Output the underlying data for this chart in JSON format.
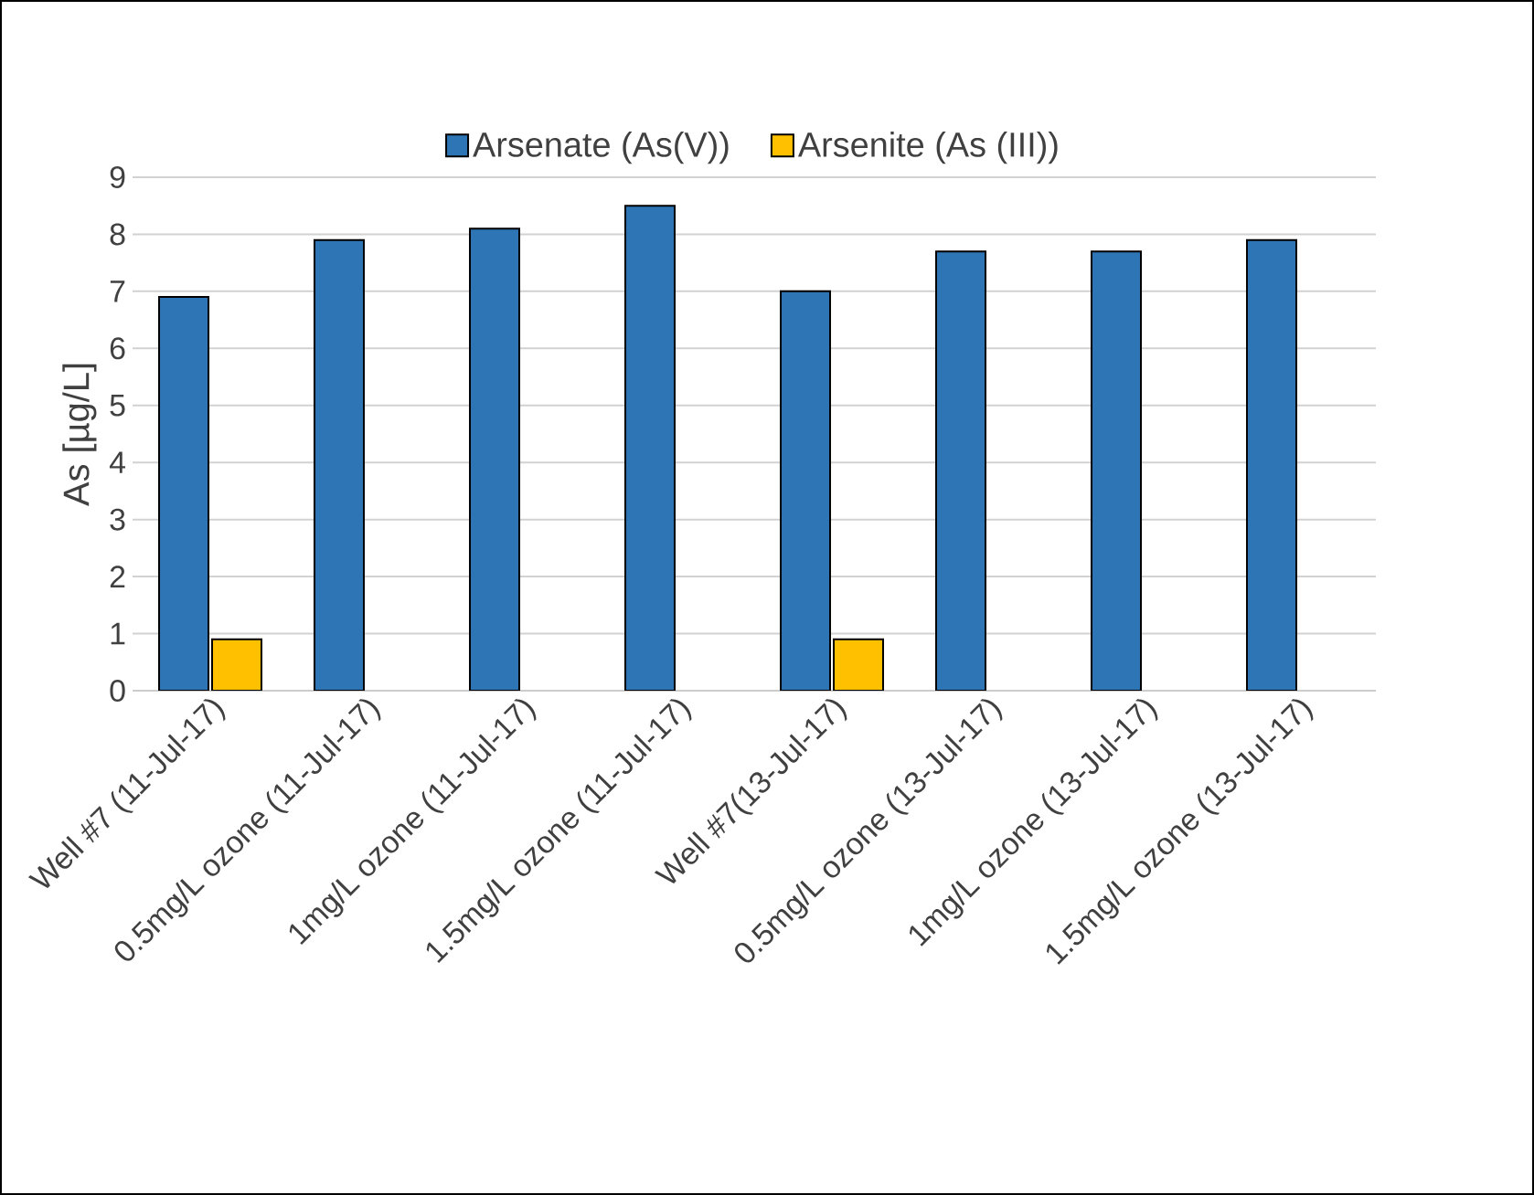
{
  "chart_data": {
    "type": "bar",
    "ylabel": "As [µg/L]",
    "categories": [
      "Well #7 (11-Jul-17)",
      "0.5mg/L ozone (11-Jul-17)",
      "1mg/L ozone (11-Jul-17)",
      "1.5mg/L ozone (11-Jul-17)",
      "Well #7(13-Jul-17)",
      "0.5mg/L ozone (13-Jul-17)",
      "1mg/L ozone (13-Jul-17)",
      "1.5mg/L ozone (13-Jul-17)"
    ],
    "series": [
      {
        "name": "Arsenate (As(V))",
        "color": "#2e75b6",
        "values": [
          6.9,
          7.9,
          8.1,
          8.5,
          7.0,
          7.7,
          7.7,
          7.9
        ]
      },
      {
        "name": "Arsenite (As (III))",
        "color": "#ffc000",
        "values": [
          0.9,
          null,
          null,
          null,
          0.9,
          null,
          null,
          null
        ]
      }
    ],
    "ylim": [
      0,
      9
    ],
    "yticks": [
      0,
      1,
      2,
      3,
      4,
      5,
      6,
      7,
      8,
      9
    ],
    "grid": "y",
    "legend": "top"
  }
}
